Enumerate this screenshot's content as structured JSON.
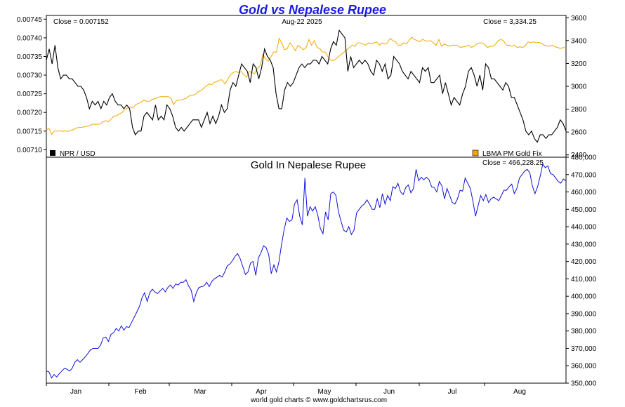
{
  "title": "Gold vs Nepalese Rupee",
  "footer": "world gold charts © www.goldchartsrus.com",
  "colors": {
    "title": "#1a1ae6",
    "npr": "#000000",
    "gold": "#f0a800",
    "gold_in_npr": "#1010d8",
    "frame": "#000000",
    "background": "#ffffff"
  },
  "months": [
    "Jan",
    "Feb",
    "Mar",
    "Apr",
    "May",
    "Jun",
    "Jul",
    "Aug"
  ],
  "chart_data": [
    {
      "type": "line",
      "title": "",
      "date_label": "Aug-22  2025",
      "left_close_label": "Close = 0.007152",
      "right_close_label": "Close = 3,334.25",
      "left_axis": {
        "ylim": [
          0.00708,
          0.00746
        ],
        "ticks": [
          "0.00710",
          "0.00715",
          "0.00720",
          "0.00725",
          "0.00730",
          "0.00735",
          "0.00740",
          "0.00745"
        ]
      },
      "right_axis": {
        "ylim": [
          2380,
          3620
        ],
        "ticks": [
          "2400",
          "2600",
          "2800",
          "3000",
          "3200",
          "3400",
          "3600"
        ]
      },
      "series": [
        {
          "name": "NPR / USD",
          "axis": "left",
          "color": "#000000",
          "values": [
            0.00734,
            0.00737,
            0.00733,
            0.00738,
            0.00732,
            0.00729,
            0.0073,
            0.0073,
            0.00729,
            0.00729,
            0.00728,
            0.00727,
            0.00727,
            0.00726,
            0.00724,
            0.00721,
            0.00723,
            0.00722,
            0.00723,
            0.00721,
            0.00723,
            0.00722,
            0.00724,
            0.00725,
            0.00723,
            0.00722,
            0.00722,
            0.00721,
            0.00722,
            0.00721,
            0.00716,
            0.00714,
            0.00715,
            0.00715,
            0.00719,
            0.0072,
            0.00719,
            0.00718,
            0.00722,
            0.00718,
            0.00719,
            0.00718,
            0.00722,
            0.00721,
            0.00719,
            0.00716,
            0.00715,
            0.00716,
            0.00715,
            0.00716,
            0.00717,
            0.00718,
            0.00718,
            0.00718,
            0.00716,
            0.00718,
            0.0072,
            0.00717,
            0.00719,
            0.00717,
            0.00719,
            0.00722,
            0.0072,
            0.00721,
            0.00726,
            0.00728,
            0.00727,
            0.0073,
            0.00733,
            0.00732,
            0.00731,
            0.00728,
            0.00733,
            0.00732,
            0.00729,
            0.00732,
            0.00737,
            0.00735,
            0.00734,
            0.00732,
            0.00725,
            0.00721,
            0.00721,
            0.00726,
            0.00728,
            0.00727,
            0.00728,
            0.0073,
            0.00732,
            0.00733,
            0.00732,
            0.00733,
            0.00733,
            0.00734,
            0.00734,
            0.00733,
            0.00735,
            0.00734,
            0.00733,
            0.00737,
            0.00739,
            0.00738,
            0.00742,
            0.00741,
            0.0074,
            0.00731,
            0.00735,
            0.00732,
            0.00733,
            0.00734,
            0.00733,
            0.00734,
            0.00733,
            0.00731,
            0.0073,
            0.00734,
            0.00733,
            0.00731,
            0.00733,
            0.00729,
            0.0073,
            0.00735,
            0.00734,
            0.00733,
            0.00731,
            0.0073,
            0.00729,
            0.00731,
            0.0073,
            0.00729,
            0.00728,
            0.00732,
            0.00731,
            0.00732,
            0.00728,
            0.00728,
            0.00729,
            0.0073,
            0.00725,
            0.00728,
            0.00725,
            0.00722,
            0.00724,
            0.00723,
            0.00722,
            0.00725,
            0.00727,
            0.00731,
            0.00732,
            0.0073,
            0.00727,
            0.0073,
            0.00726,
            0.00733,
            0.00732,
            0.00729,
            0.00729,
            0.00728,
            0.00727,
            0.00726,
            0.00728,
            0.00727,
            0.00724,
            0.00724,
            0.00722,
            0.0072,
            0.00718,
            0.00715,
            0.00714,
            0.00715,
            0.00713,
            0.00712,
            0.00714,
            0.00714,
            0.00713,
            0.00714,
            0.00714,
            0.00715,
            0.00716,
            0.00718,
            0.00717,
            0.00715
          ]
        },
        {
          "name": "LBMA PM Gold Fix",
          "axis": "right",
          "color": "#f0a800",
          "values": [
            2620,
            2630,
            2580,
            2610,
            2608,
            2610,
            2605,
            2610,
            2605,
            2615,
            2620,
            2635,
            2640,
            2640,
            2645,
            2650,
            2655,
            2670,
            2668,
            2668,
            2672,
            2690,
            2700,
            2690,
            2715,
            2740,
            2742,
            2760,
            2770,
            2800,
            2810,
            2820,
            2810,
            2840,
            2850,
            2860,
            2880,
            2870,
            2870,
            2885,
            2890,
            2900,
            2910,
            2910,
            2910,
            2910,
            2900,
            2840,
            2875,
            2880,
            2880,
            2890,
            2900,
            2920,
            2920,
            2930,
            2950,
            2960,
            2980,
            3000,
            3020,
            3015,
            3035,
            3040,
            3055,
            3055,
            3020,
            3060,
            3100,
            3120,
            3130,
            3120,
            3130,
            3100,
            3080,
            3130,
            3120,
            3110,
            3160,
            3180,
            3280,
            3240,
            3220,
            3260,
            3300,
            3300,
            3420,
            3380,
            3320,
            3330,
            3380,
            3350,
            3310,
            3360,
            3340,
            3320,
            3340,
            3410,
            3360,
            3400,
            3340,
            3330,
            3300,
            3300,
            3260,
            3230,
            3225,
            3240,
            3260,
            3280,
            3300,
            3320,
            3340,
            3360,
            3350,
            3380,
            3380,
            3370,
            3360,
            3380,
            3370,
            3380,
            3390,
            3360,
            3380,
            3370,
            3380,
            3420,
            3400,
            3390,
            3360,
            3360,
            3380,
            3370,
            3400,
            3430,
            3410,
            3400,
            3390,
            3410,
            3400,
            3395,
            3400,
            3380,
            3360,
            3410,
            3350,
            3370,
            3360,
            3350,
            3360,
            3360,
            3355,
            3340,
            3345,
            3350,
            3360,
            3340,
            3350,
            3370,
            3380,
            3380,
            3365,
            3340,
            3350,
            3350,
            3370,
            3400,
            3410,
            3395,
            3360,
            3360,
            3350,
            3360,
            3340,
            3345,
            3340,
            3355,
            3390,
            3380,
            3390,
            3380,
            3385,
            3375,
            3360,
            3355,
            3350,
            3360,
            3345,
            3340,
            3330,
            3340,
            3334
          ]
        }
      ]
    },
    {
      "type": "line",
      "title": "Gold In Nepalese Rupee",
      "close_label": "Close = 466,228.25",
      "right_axis": {
        "ylim": [
          350000,
          480000
        ],
        "ticks": [
          "350,000",
          "360,000",
          "370,000",
          "380,000",
          "390,000",
          "400,000",
          "410,000",
          "420,000",
          "430,000",
          "440,000",
          "450,000",
          "460,000",
          "470,000",
          "480,000"
        ]
      },
      "series": [
        {
          "name": "",
          "color": "#1010d8",
          "values": [
            357000,
            356500,
            353000,
            355000,
            353500,
            355500,
            357000,
            358500,
            358000,
            357000,
            358500,
            362000,
            363500,
            362000,
            363500,
            365000,
            367000,
            369000,
            370000,
            370000,
            370000,
            372000,
            376000,
            376500,
            374000,
            378000,
            379000,
            381500,
            380000,
            383000,
            380500,
            382500,
            382000,
            385000,
            388000,
            391000,
            394000,
            399000,
            402000,
            397000,
            402000,
            404000,
            402500,
            401500,
            403000,
            404500,
            402500,
            405000,
            406500,
            404500,
            407000,
            406500,
            408000,
            408000,
            409500,
            406000,
            403500,
            397000,
            402000,
            405000,
            405500,
            406000,
            408000,
            405500,
            408500,
            410000,
            411000,
            412000,
            411000,
            414000,
            417500,
            418500,
            420500,
            423000,
            424500,
            421500,
            417000,
            412500,
            414000,
            419000,
            420000,
            412000,
            422000,
            425000,
            429000,
            428000,
            424000,
            413000,
            418000,
            414000,
            420000,
            430000,
            438500,
            445000,
            443000,
            444000,
            453000,
            455500,
            446000,
            441000,
            468000,
            446000,
            451500,
            449000,
            451500,
            446500,
            439000,
            436000,
            448500,
            444000,
            459000,
            460000,
            458000,
            448500,
            443000,
            438000,
            437000,
            440000,
            435500,
            438000,
            448000,
            450000,
            452000,
            453000,
            455500,
            453000,
            450000,
            450000,
            456000,
            451000,
            459000,
            453000,
            458000,
            455000,
            463000,
            462000,
            465000,
            460000,
            458500,
            462500,
            464000,
            459500,
            462000,
            473000,
            466500,
            468500,
            467000,
            468500,
            467000,
            463000,
            462500,
            460000,
            466000,
            463500,
            456000,
            462000,
            458000,
            454000,
            453000,
            456000,
            461000,
            460500,
            468000,
            465000,
            462000,
            454500,
            446000,
            452000,
            458000,
            455000,
            458500,
            454000,
            456000,
            457000,
            456000,
            455000,
            458000,
            461000,
            461000,
            463000,
            464500,
            459000,
            462000,
            468000,
            470000,
            472000,
            473000,
            471000,
            463500,
            459000,
            463000,
            469000,
            476000,
            474000,
            475000,
            470500,
            470000,
            468000,
            466000,
            465000,
            467500,
            466228
          ]
        }
      ]
    }
  ]
}
